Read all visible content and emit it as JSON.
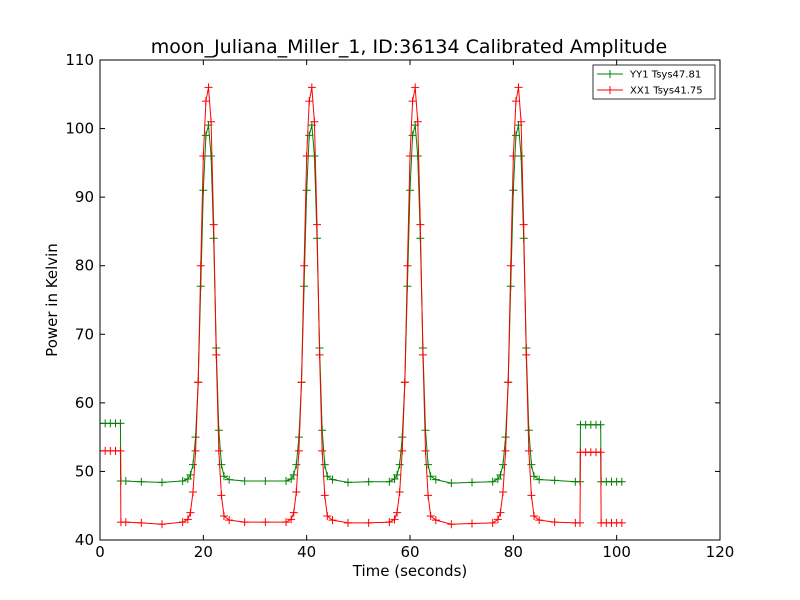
{
  "chart_data": {
    "type": "line",
    "title": "moon_Juliana_Miller_1, ID:36134 Calibrated Amplitude",
    "xlabel": "Time (seconds)",
    "ylabel": "Power in Kelvin",
    "xlim": [
      0,
      120
    ],
    "ylim": [
      40,
      110
    ],
    "xticks": [
      0,
      20,
      40,
      60,
      80,
      100,
      120
    ],
    "yticks": [
      40,
      50,
      60,
      70,
      80,
      90,
      100,
      110
    ],
    "xtick_labels": [
      "0",
      "20",
      "40",
      "60",
      "80",
      "100",
      "120"
    ],
    "ytick_labels": [
      "40",
      "50",
      "60",
      "70",
      "80",
      "90",
      "100",
      "110"
    ],
    "grid": false,
    "legend_position": "top-right",
    "series": [
      {
        "name": "YY1 Tsys47.81",
        "color": "#008000",
        "marker": "plus",
        "x": [
          0,
          1,
          2,
          3,
          3.95,
          4.05,
          5,
          8,
          12,
          16,
          17,
          17.5,
          18,
          18.5,
          19,
          19.5,
          20,
          20.5,
          21,
          21.5,
          22,
          22.5,
          23,
          23.5,
          24,
          25,
          28,
          32,
          36,
          37,
          37.5,
          38,
          38.5,
          39,
          39.5,
          40,
          40.5,
          41,
          41.5,
          42,
          42.5,
          43,
          43.5,
          44,
          45,
          48,
          52,
          56,
          57,
          57.5,
          58,
          58.5,
          59,
          59.5,
          60,
          60.5,
          61,
          61.5,
          62,
          62.5,
          63,
          63.5,
          64,
          65,
          68,
          72,
          76,
          77,
          77.5,
          78,
          78.5,
          79,
          79.5,
          80,
          80.5,
          81,
          81.5,
          82,
          82.5,
          83,
          83.5,
          84,
          85,
          88,
          92,
          92.9,
          93.0,
          94,
          95,
          96,
          96.9,
          97.0,
          98,
          99,
          100,
          101
        ],
        "y": [
          57,
          57,
          57,
          57,
          57,
          48.6,
          48.6,
          48.5,
          48.4,
          48.6,
          48.9,
          49.5,
          51,
          55,
          63,
          77,
          91,
          99,
          100.5,
          96,
          84,
          68,
          56,
          51,
          49.3,
          48.8,
          48.6,
          48.6,
          48.6,
          48.9,
          49.5,
          51,
          55,
          63,
          77,
          91,
          99,
          100.5,
          96,
          84,
          68,
          56,
          51,
          49.3,
          48.8,
          48.4,
          48.5,
          48.5,
          48.9,
          49.5,
          51,
          55,
          63,
          77,
          91,
          99,
          100.5,
          96,
          84,
          68,
          56,
          51,
          49.3,
          48.8,
          48.3,
          48.4,
          48.5,
          48.9,
          49.5,
          51,
          55,
          63,
          77,
          91,
          99,
          100.5,
          96,
          84,
          68,
          56,
          51,
          49.3,
          48.8,
          48.7,
          48.5,
          48.5,
          56.8,
          56.8,
          56.8,
          56.8,
          56.8,
          48.5,
          48.5,
          48.5,
          48.5,
          48.5
        ]
      },
      {
        "name": "XX1 Tsys41.75",
        "color": "#ff0000",
        "marker": "plus",
        "x": [
          0,
          1,
          2,
          3,
          3.95,
          4.05,
          5,
          8,
          12,
          16,
          17,
          17.5,
          18,
          18.5,
          19,
          19.5,
          20,
          20.5,
          21,
          21.5,
          22,
          22.5,
          23,
          23.5,
          24,
          25,
          28,
          32,
          36,
          37,
          37.5,
          38,
          38.5,
          39,
          39.5,
          40,
          40.5,
          41,
          41.5,
          42,
          42.5,
          43,
          43.5,
          44,
          45,
          48,
          52,
          56,
          57,
          57.5,
          58,
          58.5,
          59,
          59.5,
          60,
          60.5,
          61,
          61.5,
          62,
          62.5,
          63,
          63.5,
          64,
          65,
          68,
          72,
          76,
          77,
          77.5,
          78,
          78.5,
          79,
          79.5,
          80,
          80.5,
          81,
          81.5,
          82,
          82.5,
          83,
          83.5,
          84,
          85,
          88,
          92,
          92.9,
          93.0,
          94,
          95,
          96,
          96.9,
          97.0,
          98,
          99,
          100,
          101
        ],
        "y": [
          53,
          53,
          53,
          53,
          53,
          42.6,
          42.6,
          42.5,
          42.3,
          42.6,
          43,
          44,
          47,
          53,
          63,
          80,
          96,
          104,
          106,
          101,
          86,
          67,
          53,
          46.5,
          43.5,
          42.9,
          42.6,
          42.6,
          42.6,
          43,
          44,
          47,
          53,
          63,
          80,
          96,
          104,
          106,
          101,
          86,
          67,
          53,
          46.5,
          43.5,
          42.9,
          42.5,
          42.5,
          42.6,
          43,
          44,
          47,
          53,
          63,
          80,
          96,
          104,
          106,
          101,
          86,
          67,
          53,
          46.5,
          43.5,
          42.9,
          42.3,
          42.4,
          42.5,
          43,
          44,
          47,
          53,
          63,
          80,
          96,
          104,
          106,
          101,
          86,
          67,
          53,
          46.5,
          43.5,
          42.9,
          42.6,
          42.5,
          42.5,
          52.8,
          52.8,
          52.8,
          52.8,
          52.8,
          42.5,
          42.5,
          42.5,
          42.5,
          42.5
        ]
      }
    ]
  }
}
